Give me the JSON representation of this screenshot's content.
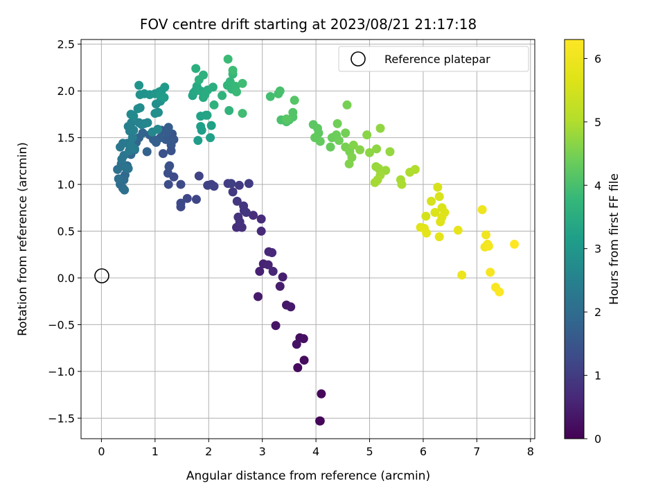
{
  "chart_data": {
    "type": "scatter",
    "title": "FOV centre drift starting at 2023/08/21 21:17:18",
    "xlabel": "Angular distance from reference (arcmin)",
    "ylabel": "Rotation from reference (arcmin)",
    "xlim": [
      -0.38,
      8.08
    ],
    "ylim": [
      -1.72,
      2.55
    ],
    "xticks": [
      0,
      1,
      2,
      3,
      4,
      5,
      6,
      7,
      8
    ],
    "yticks": [
      -1.5,
      -1.0,
      -0.5,
      0.0,
      0.5,
      1.0,
      1.5,
      2.0,
      2.5
    ],
    "xtick_labels": [
      "0",
      "1",
      "2",
      "3",
      "4",
      "5",
      "6",
      "7",
      "8"
    ],
    "ytick_labels": [
      "−1.5",
      "−1.0",
      "−0.5",
      "0.0",
      "0.5",
      "1.0",
      "1.5",
      "2.0",
      "2.5"
    ],
    "grid": true,
    "legend_position": "top-right",
    "legend": {
      "label": "Reference platepar",
      "marker": "open-circle"
    },
    "reference_point": {
      "x": 0.0,
      "y": 0.0
    },
    "colorbar": {
      "label": "Hours from first FF file",
      "colormap": "viridis",
      "range": [
        0,
        6.3
      ],
      "ticks": [
        0,
        1,
        2,
        3,
        4,
        5,
        6
      ],
      "tick_labels": [
        "0",
        "1",
        "2",
        "3",
        "4",
        "5",
        "6"
      ]
    },
    "series": [
      {
        "color_by": "hours",
        "points": [
          [
            4.07,
            -1.53,
            0.05
          ],
          [
            4.08,
            -1.53,
            0.08
          ],
          [
            4.1,
            -1.24,
            0.12
          ],
          [
            3.66,
            -0.96,
            0.15
          ],
          [
            3.78,
            -0.88,
            0.18
          ],
          [
            3.7,
            -0.64,
            0.22
          ],
          [
            3.77,
            -0.65,
            0.25
          ],
          [
            3.64,
            -0.71,
            0.28
          ],
          [
            3.25,
            -0.51,
            0.32
          ],
          [
            3.45,
            -0.29,
            0.35
          ],
          [
            3.53,
            -0.31,
            0.38
          ],
          [
            2.92,
            -0.2,
            0.42
          ],
          [
            3.33,
            -0.09,
            0.45
          ],
          [
            3.38,
            0.01,
            0.48
          ],
          [
            2.95,
            0.07,
            0.52
          ],
          [
            3.02,
            0.15,
            0.55
          ],
          [
            3.11,
            0.14,
            0.58
          ],
          [
            3.2,
            0.07,
            0.6
          ],
          [
            3.12,
            0.28,
            0.62
          ],
          [
            3.18,
            0.27,
            0.65
          ],
          [
            2.98,
            0.5,
            0.68
          ],
          [
            2.98,
            0.63,
            0.7
          ],
          [
            2.83,
            0.67,
            0.72
          ],
          [
            2.52,
            0.54,
            0.75
          ],
          [
            2.62,
            0.54,
            0.78
          ],
          [
            2.58,
            0.6,
            0.8
          ],
          [
            2.55,
            0.65,
            0.82
          ],
          [
            2.66,
            0.72,
            0.85
          ],
          [
            2.7,
            0.7,
            0.88
          ],
          [
            2.65,
            0.77,
            0.9
          ],
          [
            2.53,
            0.82,
            0.92
          ],
          [
            2.45,
            0.92,
            0.95
          ],
          [
            2.57,
            0.99,
            0.98
          ],
          [
            2.75,
            1.01,
            1.0
          ],
          [
            2.36,
            1.01,
            1.02
          ],
          [
            2.42,
            1.01,
            1.05
          ],
          [
            2.05,
            1.0,
            1.08
          ],
          [
            2.1,
            0.98,
            1.1
          ],
          [
            1.98,
            0.99,
            1.12
          ],
          [
            1.82,
            1.09,
            1.15
          ],
          [
            1.77,
            0.84,
            1.18
          ],
          [
            1.6,
            0.85,
            1.2
          ],
          [
            1.48,
            0.76,
            1.22
          ],
          [
            1.48,
            0.8,
            1.25
          ],
          [
            1.48,
            1.0,
            1.28
          ],
          [
            1.35,
            1.08,
            1.3
          ],
          [
            1.25,
            1.0,
            1.32
          ],
          [
            1.24,
            1.12,
            1.35
          ],
          [
            1.26,
            1.19,
            1.38
          ],
          [
            1.27,
            1.2,
            1.4
          ],
          [
            1.15,
            1.33,
            1.42
          ],
          [
            1.3,
            1.36,
            1.45
          ],
          [
            1.3,
            1.42,
            1.48
          ],
          [
            1.32,
            1.54,
            1.5
          ],
          [
            1.35,
            1.48,
            1.52
          ],
          [
            1.3,
            1.45,
            1.55
          ],
          [
            1.2,
            1.48,
            1.58
          ],
          [
            1.12,
            1.58,
            1.6
          ],
          [
            1.23,
            1.56,
            1.62
          ],
          [
            1.25,
            1.61,
            1.65
          ],
          [
            1.1,
            1.5,
            1.68
          ],
          [
            1.02,
            1.45,
            1.7
          ],
          [
            0.97,
            1.48,
            1.72
          ],
          [
            0.9,
            1.53,
            1.75
          ],
          [
            0.85,
            1.35,
            1.78
          ],
          [
            0.77,
            1.55,
            1.8
          ],
          [
            0.7,
            1.5,
            1.82
          ],
          [
            0.65,
            1.45,
            1.85
          ],
          [
            0.62,
            1.37,
            1.88
          ],
          [
            0.55,
            1.32,
            1.9
          ],
          [
            0.48,
            1.2,
            1.92
          ],
          [
            0.44,
            1.1,
            1.95
          ],
          [
            0.42,
            1.05,
            1.98
          ],
          [
            0.35,
            1.0,
            2.0
          ],
          [
            0.4,
            0.96,
            2.02
          ],
          [
            0.43,
            0.94,
            2.05
          ],
          [
            0.32,
            1.06,
            2.08
          ],
          [
            0.3,
            1.16,
            2.1
          ],
          [
            0.37,
            1.22,
            2.12
          ],
          [
            0.45,
            1.18,
            2.15
          ],
          [
            0.5,
            1.17,
            2.18
          ],
          [
            0.38,
            1.27,
            2.2
          ],
          [
            0.42,
            1.31,
            2.22
          ],
          [
            0.35,
            1.4,
            2.25
          ],
          [
            0.4,
            1.44,
            2.28
          ],
          [
            0.48,
            1.44,
            2.3
          ],
          [
            0.52,
            1.36,
            2.32
          ],
          [
            0.55,
            1.42,
            2.35
          ],
          [
            0.62,
            1.38,
            2.38
          ],
          [
            0.58,
            1.5,
            2.4
          ],
          [
            0.53,
            1.57,
            2.42
          ],
          [
            0.5,
            1.62,
            2.45
          ],
          [
            0.56,
            1.66,
            2.48
          ],
          [
            0.6,
            1.58,
            2.5
          ],
          [
            0.7,
            1.66,
            2.52
          ],
          [
            0.75,
            1.64,
            2.55
          ],
          [
            0.8,
            1.65,
            2.58
          ],
          [
            0.86,
            1.66,
            2.6
          ],
          [
            0.95,
            1.56,
            2.62
          ],
          [
            1.05,
            1.59,
            2.65
          ],
          [
            0.55,
            1.75,
            2.68
          ],
          [
            0.6,
            1.73,
            2.7
          ],
          [
            0.68,
            1.81,
            2.72
          ],
          [
            0.72,
            1.82,
            2.75
          ],
          [
            1.0,
            1.76,
            2.78
          ],
          [
            1.06,
            1.77,
            2.8
          ],
          [
            1.02,
            1.86,
            2.82
          ],
          [
            1.1,
            1.89,
            2.85
          ],
          [
            0.72,
            1.96,
            2.88
          ],
          [
            0.8,
            1.97,
            2.9
          ],
          [
            0.9,
            1.96,
            2.92
          ],
          [
            0.7,
            2.06,
            2.95
          ],
          [
            1.0,
            1.97,
            2.98
          ],
          [
            1.08,
            1.99,
            3.0
          ],
          [
            1.12,
            2.0,
            3.02
          ],
          [
            1.18,
            2.04,
            3.05
          ],
          [
            1.1,
            1.95,
            3.08
          ],
          [
            1.17,
            1.93,
            3.1
          ],
          [
            1.8,
            1.47,
            3.12
          ],
          [
            1.87,
            1.58,
            3.15
          ],
          [
            1.85,
            1.62,
            3.18
          ],
          [
            2.03,
            1.5,
            3.2
          ],
          [
            2.05,
            1.63,
            3.22
          ],
          [
            1.85,
            1.73,
            3.25
          ],
          [
            1.95,
            1.74,
            3.28
          ],
          [
            1.97,
            1.74,
            3.3
          ],
          [
            1.7,
            1.95,
            3.32
          ],
          [
            1.72,
            1.98,
            3.35
          ],
          [
            1.75,
            2.0,
            3.38
          ],
          [
            1.78,
            2.05,
            3.4
          ],
          [
            1.85,
            2.0,
            3.42
          ],
          [
            1.9,
            1.93,
            3.45
          ],
          [
            1.93,
            1.96,
            3.48
          ],
          [
            1.98,
            2.01,
            3.5
          ],
          [
            2.08,
            2.04,
            3.52
          ],
          [
            1.76,
            2.24,
            3.55
          ],
          [
            1.82,
            2.12,
            3.58
          ],
          [
            1.9,
            2.17,
            3.6
          ],
          [
            2.1,
            1.85,
            3.62
          ],
          [
            2.25,
            1.95,
            3.65
          ],
          [
            2.38,
            1.79,
            3.68
          ],
          [
            2.35,
            2.06,
            3.7
          ],
          [
            2.43,
            2.02,
            3.72
          ],
          [
            2.4,
            2.1,
            3.75
          ],
          [
            2.45,
            2.18,
            3.78
          ],
          [
            2.5,
            2.05,
            3.8
          ],
          [
            2.52,
            1.99,
            3.82
          ],
          [
            2.36,
            2.34,
            3.85
          ],
          [
            2.45,
            2.22,
            3.88
          ],
          [
            2.63,
            2.08,
            3.9
          ],
          [
            2.63,
            1.76,
            3.92
          ],
          [
            3.15,
            1.94,
            3.95
          ],
          [
            3.3,
            1.97,
            3.98
          ],
          [
            3.33,
            2.0,
            4.0
          ],
          [
            3.35,
            1.69,
            4.02
          ],
          [
            3.45,
            1.67,
            4.05
          ],
          [
            3.5,
            1.69,
            4.08
          ],
          [
            3.57,
            1.72,
            4.1
          ],
          [
            3.57,
            1.77,
            4.12
          ],
          [
            3.6,
            1.9,
            4.15
          ],
          [
            3.45,
            1.7,
            4.18
          ],
          [
            3.95,
            1.64,
            4.2
          ],
          [
            4.03,
            1.6,
            4.22
          ],
          [
            4.05,
            1.55,
            4.25
          ],
          [
            3.98,
            1.5,
            4.28
          ],
          [
            4.08,
            1.46,
            4.3
          ],
          [
            4.27,
            1.4,
            4.32
          ],
          [
            4.3,
            1.5,
            4.35
          ],
          [
            4.38,
            1.53,
            4.38
          ],
          [
            4.43,
            1.47,
            4.4
          ],
          [
            4.4,
            1.65,
            4.42
          ],
          [
            4.55,
            1.55,
            4.45
          ],
          [
            4.58,
            1.85,
            4.48
          ],
          [
            4.55,
            1.4,
            4.5
          ],
          [
            4.63,
            1.35,
            4.52
          ],
          [
            4.67,
            1.29,
            4.55
          ],
          [
            4.62,
            1.22,
            4.58
          ],
          [
            4.7,
            1.42,
            4.6
          ],
          [
            4.82,
            1.37,
            4.62
          ],
          [
            4.95,
            1.53,
            4.65
          ],
          [
            5.0,
            1.34,
            4.68
          ],
          [
            5.13,
            1.38,
            4.7
          ],
          [
            5.2,
            1.6,
            4.72
          ],
          [
            5.38,
            1.35,
            4.75
          ],
          [
            5.12,
            1.19,
            4.78
          ],
          [
            5.17,
            1.17,
            4.8
          ],
          [
            5.3,
            1.15,
            4.82
          ],
          [
            5.2,
            1.1,
            4.85
          ],
          [
            5.15,
            1.05,
            4.88
          ],
          [
            5.1,
            1.02,
            4.9
          ],
          [
            5.58,
            1.05,
            4.92
          ],
          [
            5.6,
            1.0,
            4.95
          ],
          [
            5.75,
            1.13,
            4.98
          ],
          [
            5.85,
            1.16,
            5.0
          ],
          [
            6.05,
            0.66,
            5.5
          ],
          [
            6.15,
            0.82,
            5.52
          ],
          [
            6.27,
            0.97,
            5.55
          ],
          [
            6.3,
            0.87,
            5.58
          ],
          [
            6.35,
            0.75,
            5.6
          ],
          [
            6.22,
            0.7,
            5.62
          ],
          [
            6.4,
            0.7,
            5.65
          ],
          [
            6.32,
            0.6,
            5.68
          ],
          [
            6.35,
            0.65,
            5.7
          ],
          [
            5.95,
            0.54,
            5.72
          ],
          [
            6.02,
            0.53,
            5.75
          ],
          [
            6.06,
            0.48,
            5.78
          ],
          [
            6.3,
            0.44,
            5.8
          ],
          [
            6.65,
            0.51,
            5.85
          ],
          [
            6.72,
            0.03,
            5.95
          ],
          [
            7.1,
            0.73,
            6.0
          ],
          [
            7.17,
            0.46,
            6.05
          ],
          [
            7.15,
            0.33,
            6.08
          ],
          [
            7.2,
            0.36,
            6.1
          ],
          [
            7.22,
            0.34,
            6.12
          ],
          [
            7.25,
            0.06,
            6.15
          ],
          [
            7.35,
            -0.1,
            6.2
          ],
          [
            7.42,
            -0.15,
            6.25
          ],
          [
            7.7,
            0.36,
            6.3
          ]
        ]
      }
    ]
  }
}
